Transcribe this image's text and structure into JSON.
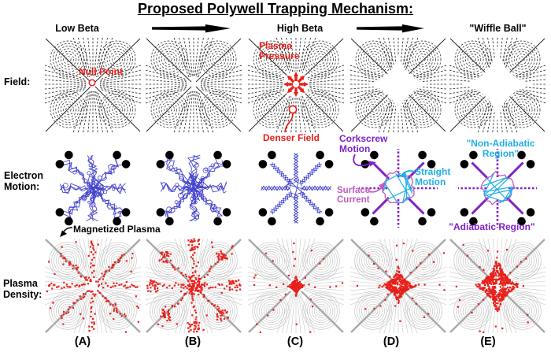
{
  "title": "Proposed Polywell Trapping Mechanism:",
  "header": {
    "low_beta": "Low Beta",
    "high_beta": "High Beta",
    "wiffle_ball": "\"Wiffle Ball\""
  },
  "row_labels": {
    "field": "Field:",
    "electron": "Electron Motion:",
    "plasma": "Plasma Density:"
  },
  "column_labels": [
    "(A)",
    "(B)",
    "(C)",
    "(D)",
    "(E)"
  ],
  "annotations": {
    "null_point": "Null Point",
    "plasma_pressure": "Plasma Pressure",
    "denser_field": "Denser Field",
    "corkscrew_motion": "Corkscrew Motion",
    "straight_motion": "Straight Motion",
    "surface_current": "Surface Current",
    "non_adiabatic_region": "\"Non-Adiabatic Region\"",
    "adiabatic_region": "\"Adiabatic Region\"",
    "magnetized_plasma": "Magnetized Plasma"
  },
  "colors": {
    "red": "#e8201a",
    "blue": "#4545cf",
    "purple": "#8020c8",
    "cyan": "#1fb0e8",
    "pink": "#c05cc0",
    "field_line": "#1e1e1e",
    "gray_contour": "#c2c2c2",
    "gray_diagonal": "#a8a8a8",
    "coil_dot": "#000000"
  },
  "panels": {
    "field": [
      {
        "id": "a",
        "state": "low-beta-null-point"
      },
      {
        "id": "b",
        "state": "low-beta"
      },
      {
        "id": "c",
        "state": "high-beta-compressed"
      },
      {
        "id": "d",
        "state": "excluded",
        "void_scale": 0.82
      },
      {
        "id": "e",
        "state": "excluded",
        "void_scale": 1.0
      }
    ],
    "electron": [
      {
        "id": "a",
        "style": "chaotic",
        "seed": 11
      },
      {
        "id": "b",
        "style": "chaotic",
        "seed": 29
      },
      {
        "id": "c",
        "style": "spokes",
        "seed": 47
      },
      {
        "id": "d",
        "style": "organized",
        "seed": 61
      },
      {
        "id": "e",
        "style": "organized",
        "seed": 83
      }
    ],
    "plasma": [
      {
        "id": "a",
        "distribution": "cusp-lines",
        "seed": 101
      },
      {
        "id": "b",
        "distribution": "cusp-clumps",
        "seed": 113
      },
      {
        "id": "c",
        "distribution": "central-star",
        "size": 15,
        "seed": 131
      },
      {
        "id": "d",
        "distribution": "central-star",
        "size": 29,
        "seed": 151
      },
      {
        "id": "e",
        "distribution": "central-star",
        "size": 39,
        "seed": 173
      }
    ]
  }
}
